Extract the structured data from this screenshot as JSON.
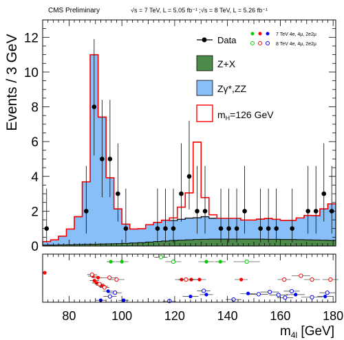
{
  "header": {
    "left": "CMS Preliminary",
    "right": "√s = 7 TeV, L = 5.05 fb⁻¹ ;√s = 8 TeV, L = 5.26 fb⁻¹"
  },
  "legend": {
    "data": "Data",
    "zx": "Z+X",
    "zz": "Zγ*,ZZ",
    "signal": "m",
    "signal_sub": "H",
    "signal_rest": "=126 GeV",
    "run7": "7 TeV 4e, 4μ, 2e2μ",
    "run8": "8 TeV 4e, 4μ, 2e2μ"
  },
  "chart_data": [
    {
      "type": "bar",
      "xlabel": "m",
      "xlabel_sub": "4l",
      "xlabel_unit": " [GeV]",
      "ylabel": "Events / 3 GeV",
      "xlim": [
        70,
        181
      ],
      "ylim": [
        0,
        13
      ],
      "x_ticks": [
        80,
        100,
        120,
        140,
        160,
        180
      ],
      "y_ticks": [
        0,
        2,
        4,
        6,
        8,
        10,
        12
      ],
      "bin_edges": [
        70,
        73,
        76,
        79,
        82,
        85,
        88,
        91,
        94,
        97,
        100,
        103,
        106,
        109,
        112,
        115,
        118,
        121,
        124,
        127,
        130,
        133,
        136,
        139,
        142,
        145,
        148,
        151,
        154,
        157,
        160,
        163,
        166,
        169,
        172,
        175,
        178,
        181
      ],
      "stack_zx": [
        0.05,
        0.05,
        0.06,
        0.07,
        0.08,
        0.09,
        0.1,
        0.11,
        0.12,
        0.13,
        0.15,
        0.17,
        0.19,
        0.22,
        0.25,
        0.28,
        0.31,
        0.33,
        0.35,
        0.37,
        0.38,
        0.39,
        0.39,
        0.39,
        0.39,
        0.39,
        0.39,
        0.39,
        0.38,
        0.38,
        0.37,
        0.37,
        0.36,
        0.35,
        0.34,
        0.33,
        0.32
      ],
      "stack_zz": [
        0.2,
        0.3,
        0.5,
        0.9,
        1.6,
        3.6,
        10.9,
        7.3,
        3.8,
        2.0,
        1.1,
        0.8,
        0.8,
        1.0,
        1.1,
        1.2,
        1.15,
        1.2,
        1.25,
        1.25,
        1.3,
        1.2,
        1.2,
        1.2,
        1.2,
        1.1,
        1.1,
        1.15,
        1.2,
        1.15,
        1.1,
        1.1,
        1.25,
        1.4,
        1.4,
        1.8,
        2.1
      ],
      "stack_signal": [
        0.2,
        0.3,
        0.5,
        0.9,
        1.6,
        3.6,
        10.9,
        7.3,
        3.8,
        2.0,
        1.1,
        0.8,
        0.8,
        1.0,
        1.1,
        1.2,
        1.3,
        1.9,
        2.7,
        5.6,
        2.4,
        1.4,
        1.2,
        1.2,
        1.2,
        1.1,
        1.1,
        1.15,
        1.2,
        1.15,
        1.1,
        1.1,
        1.25,
        1.4,
        1.4,
        1.8,
        2.1
      ],
      "data_points": [
        {
          "x": 71.5,
          "y": 1,
          "lo": 0.8,
          "hi": 2.3
        },
        {
          "x": 86.5,
          "y": 2,
          "lo": 1.3,
          "hi": 2.6
        },
        {
          "x": 89.5,
          "y": 8,
          "lo": 2.8,
          "hi": 3.9
        },
        {
          "x": 92.5,
          "y": 5,
          "lo": 2.2,
          "hi": 3.4
        },
        {
          "x": 95.5,
          "y": 5,
          "lo": 2.2,
          "hi": 3.4
        },
        {
          "x": 98.5,
          "y": 3,
          "lo": 1.6,
          "hi": 2.9
        },
        {
          "x": 101.5,
          "y": 1,
          "lo": 0.8,
          "hi": 2.3
        },
        {
          "x": 113.5,
          "y": 1,
          "lo": 0.8,
          "hi": 2.3
        },
        {
          "x": 116.5,
          "y": 1,
          "lo": 0.8,
          "hi": 2.3
        },
        {
          "x": 119.5,
          "y": 1,
          "lo": 0.8,
          "hi": 2.3
        },
        {
          "x": 122.5,
          "y": 3,
          "lo": 1.6,
          "hi": 2.9
        },
        {
          "x": 125.5,
          "y": 4,
          "lo": 1.9,
          "hi": 3.2
        },
        {
          "x": 128.5,
          "y": 2,
          "lo": 1.3,
          "hi": 2.6
        },
        {
          "x": 131.5,
          "y": 2,
          "lo": 1.3,
          "hi": 2.6
        },
        {
          "x": 137.5,
          "y": 1,
          "lo": 0.8,
          "hi": 2.3
        },
        {
          "x": 140.5,
          "y": 1,
          "lo": 0.8,
          "hi": 2.3
        },
        {
          "x": 143.5,
          "y": 1,
          "lo": 0.8,
          "hi": 2.3
        },
        {
          "x": 146.5,
          "y": 2,
          "lo": 1.3,
          "hi": 2.6
        },
        {
          "x": 152.5,
          "y": 1,
          "lo": 0.8,
          "hi": 2.3
        },
        {
          "x": 155.5,
          "y": 1,
          "lo": 0.8,
          "hi": 2.3
        },
        {
          "x": 158.5,
          "y": 1,
          "lo": 0.8,
          "hi": 2.3
        },
        {
          "x": 164.5,
          "y": 1,
          "lo": 0.8,
          "hi": 2.3
        },
        {
          "x": 170.5,
          "y": 2,
          "lo": 1.3,
          "hi": 2.6
        },
        {
          "x": 173.5,
          "y": 2,
          "lo": 1.3,
          "hi": 2.6
        },
        {
          "x": 176.5,
          "y": 3,
          "lo": 1.6,
          "hi": 2.9
        },
        {
          "x": 179.5,
          "y": 2,
          "lo": 1.3,
          "hi": 2.6
        }
      ]
    },
    {
      "type": "scatter",
      "description_rows": "per-event mass measurements with mass uncertainty; row 1 = green (4μ), row 2 = red (4e), row 3 = blue (2e2μ); filled = 7 TeV, open = 8 TeV",
      "colors": {
        "green": "#00cc00",
        "red": "#ff0000",
        "blue": "#0000ff"
      },
      "events": [
        {
          "m": 95.8,
          "err": 1.5,
          "row": 1,
          "color": "green",
          "run": "7TeV",
          "jit": 0
        },
        {
          "m": 100.0,
          "err": 2.5,
          "row": 1,
          "color": "green",
          "run": "7TeV",
          "jit": 0
        },
        {
          "m": 114.8,
          "err": 2.5,
          "row": 1,
          "color": "green",
          "run": "8TeV",
          "jit": 0.6
        },
        {
          "m": 119.5,
          "err": 3.0,
          "row": 1,
          "color": "green",
          "run": "8TeV",
          "jit": 0
        },
        {
          "m": 132.0,
          "err": 3.0,
          "row": 1,
          "color": "green",
          "run": "7TeV",
          "jit": 0
        },
        {
          "m": 137.3,
          "err": 2.0,
          "row": 1,
          "color": "green",
          "run": "7TeV",
          "jit": 0
        },
        {
          "m": 147.3,
          "err": 5.0,
          "row": 1,
          "color": "green",
          "run": "8TeV",
          "jit": 0
        },
        {
          "m": 70.8,
          "err": 0,
          "row": 2,
          "color": "red",
          "run": "7TeV",
          "jit": 0.9
        },
        {
          "m": 89.0,
          "err": 1.8,
          "row": 2,
          "color": "red",
          "run": "7TeV",
          "jit": 0.45
        },
        {
          "m": 89.6,
          "err": 1.8,
          "row": 2,
          "color": "red",
          "run": "7TeV",
          "jit": -0.15
        },
        {
          "m": 90.5,
          "err": 1.8,
          "row": 2,
          "color": "red",
          "run": "7TeV",
          "jit": -0.45
        },
        {
          "m": 91.0,
          "err": 1.8,
          "row": 2,
          "color": "red",
          "run": "7TeV",
          "jit": 0.25
        },
        {
          "m": 92.0,
          "err": 1.8,
          "row": 2,
          "color": "red",
          "run": "7TeV",
          "jit": -0.75
        },
        {
          "m": 93.0,
          "err": 1.8,
          "row": 2,
          "color": "red",
          "run": "7TeV",
          "jit": -0.9
        },
        {
          "m": 88.7,
          "err": 1.8,
          "row": 2,
          "color": "red",
          "run": "8TeV",
          "jit": 0.65
        },
        {
          "m": 91.5,
          "err": 1.8,
          "row": 2,
          "color": "red",
          "run": "8TeV",
          "jit": -0.6
        },
        {
          "m": 93.4,
          "err": 1.8,
          "row": 2,
          "color": "red",
          "run": "8TeV",
          "jit": -1.05
        },
        {
          "m": 95.3,
          "err": 3.0,
          "row": 2,
          "color": "red",
          "run": "8TeV",
          "jit": 0.25
        },
        {
          "m": 98.0,
          "err": 3.0,
          "row": 2,
          "color": "red",
          "run": "8TeV",
          "jit": 0
        },
        {
          "m": 122.6,
          "err": 2.5,
          "row": 2,
          "color": "red",
          "run": "7TeV",
          "jit": 0
        },
        {
          "m": 126.3,
          "err": 2.5,
          "row": 2,
          "color": "red",
          "run": "7TeV",
          "jit": 0
        },
        {
          "m": 129.4,
          "err": 2.5,
          "row": 2,
          "color": "red",
          "run": "7TeV",
          "jit": 0
        },
        {
          "m": 145.2,
          "err": 2.5,
          "row": 2,
          "color": "red",
          "run": "7TeV",
          "jit": 0
        },
        {
          "m": 124.3,
          "err": 3.0,
          "row": 2,
          "color": "red",
          "run": "8TeV",
          "jit": 0
        },
        {
          "m": 167.8,
          "err": 3.5,
          "row": 2,
          "color": "red",
          "run": "8TeV",
          "jit": 0.5
        },
        {
          "m": 161.5,
          "err": 2.5,
          "row": 2,
          "color": "red",
          "run": "8TeV",
          "jit": 0
        },
        {
          "m": 172.0,
          "err": 3.0,
          "row": 2,
          "color": "red",
          "run": "8TeV",
          "jit": 0
        },
        {
          "m": 179.0,
          "err": 3.0,
          "row": 2,
          "color": "red",
          "run": "8TeV",
          "jit": 0
        },
        {
          "m": 94.8,
          "err": 2.0,
          "row": 3,
          "color": "blue",
          "run": "7TeV",
          "jit": 0.55
        },
        {
          "m": 92.0,
          "err": 2.0,
          "row": 3,
          "color": "blue",
          "run": "7TeV",
          "jit": -0.65
        },
        {
          "m": 100.7,
          "err": 2.0,
          "row": 3,
          "color": "blue",
          "run": "7TeV",
          "jit": -0.65
        },
        {
          "m": 95.5,
          "err": 2.5,
          "row": 3,
          "color": "blue",
          "run": "8TeV",
          "jit": -0.15
        },
        {
          "m": 97.4,
          "err": 2.5,
          "row": 3,
          "color": "blue",
          "run": "8TeV",
          "jit": 0.35
        },
        {
          "m": 118.0,
          "err": 2.5,
          "row": 3,
          "color": "blue",
          "run": "8TeV",
          "jit": -0.75
        },
        {
          "m": 126.0,
          "err": 3.0,
          "row": 3,
          "color": "blue",
          "run": "7TeV",
          "jit": -0.15
        },
        {
          "m": 131.0,
          "err": 2.5,
          "row": 3,
          "color": "blue",
          "run": "8TeV",
          "jit": 0.6
        },
        {
          "m": 132.0,
          "err": 2.5,
          "row": 3,
          "color": "blue",
          "run": "7TeV",
          "jit": 0.1
        },
        {
          "m": 142.3,
          "err": 3.0,
          "row": 3,
          "color": "blue",
          "run": "8TeV",
          "jit": -0.55
        },
        {
          "m": 147.8,
          "err": 3.0,
          "row": 3,
          "color": "blue",
          "run": "7TeV",
          "jit": 0.25
        },
        {
          "m": 151.8,
          "err": 3.5,
          "row": 3,
          "color": "blue",
          "run": "8TeV",
          "jit": 0.15
        },
        {
          "m": 156.0,
          "err": 3.5,
          "row": 3,
          "color": "blue",
          "run": "8TeV",
          "jit": 0.45
        },
        {
          "m": 159.3,
          "err": 3.5,
          "row": 3,
          "color": "blue",
          "run": "8TeV",
          "jit": 0.05
        },
        {
          "m": 161.8,
          "err": 3.0,
          "row": 3,
          "color": "blue",
          "run": "8TeV",
          "jit": -0.3
        },
        {
          "m": 165.8,
          "err": 3.5,
          "row": 3,
          "color": "blue",
          "run": "7TeV",
          "jit": 0.1
        },
        {
          "m": 164.3,
          "err": 3.0,
          "row": 3,
          "color": "blue",
          "run": "8TeV",
          "jit": 0.55
        },
        {
          "m": 172.0,
          "err": 4.0,
          "row": 3,
          "color": "blue",
          "run": "8TeV",
          "jit": -0.25
        },
        {
          "m": 177.0,
          "err": 3.0,
          "row": 3,
          "color": "blue",
          "run": "7TeV",
          "jit": -0.15
        },
        {
          "m": 177.8,
          "err": 3.0,
          "row": 3,
          "color": "blue",
          "run": "8TeV",
          "jit": 0.35
        }
      ]
    }
  ],
  "colors": {
    "zz_fill": "#89bff8",
    "zx_fill": "#4d8b4b",
    "signal_line": "#ff0000",
    "data_marker": "#000000"
  }
}
